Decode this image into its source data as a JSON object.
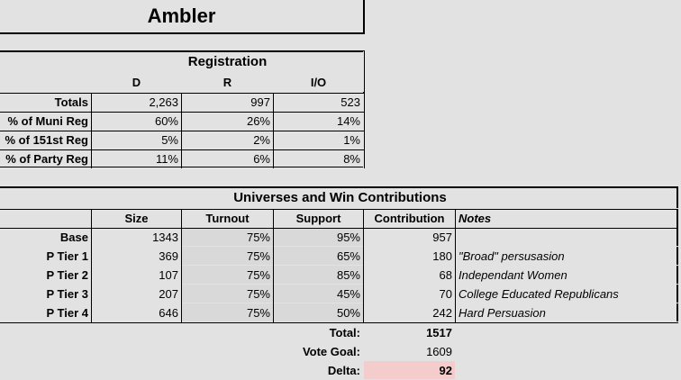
{
  "title": "Ambler",
  "registration": {
    "heading": "Registration",
    "columns": [
      "D",
      "R",
      "I/O"
    ],
    "rows": [
      {
        "label": "Totals",
        "values": [
          "2,263",
          "997",
          "523"
        ]
      },
      {
        "label": "% of Muni Reg",
        "values": [
          "60%",
          "26%",
          "14%"
        ]
      },
      {
        "label": "% of 151st Reg",
        "values": [
          "5%",
          "2%",
          "1%"
        ]
      },
      {
        "label": "% of Party Reg",
        "values": [
          "11%",
          "6%",
          "8%"
        ]
      }
    ]
  },
  "universes": {
    "heading": "Universes and Win Contributions",
    "columns": [
      "Size",
      "Turnout",
      "Support",
      "Contribution",
      "Notes"
    ],
    "rows": [
      {
        "label": "Base",
        "size": "1343",
        "turnout": "75%",
        "support": "95%",
        "contribution": "957",
        "note": ""
      },
      {
        "label": "P Tier 1",
        "size": "369",
        "turnout": "75%",
        "support": "65%",
        "contribution": "180",
        "note": "\"Broad\" persusasion"
      },
      {
        "label": "P Tier 2",
        "size": "107",
        "turnout": "75%",
        "support": "85%",
        "contribution": "68",
        "note": "Independant Women"
      },
      {
        "label": "P Tier 3",
        "size": "207",
        "turnout": "75%",
        "support": "45%",
        "contribution": "70",
        "note": "College Educated Republicans"
      },
      {
        "label": "P Tier 4",
        "size": "646",
        "turnout": "75%",
        "support": "50%",
        "contribution": "242",
        "note": "Hard Persuasion"
      }
    ]
  },
  "summary": [
    {
      "label": "Total:",
      "value": "1517"
    },
    {
      "label": "Vote Goal:",
      "value": "1609"
    },
    {
      "label": "Delta:",
      "value": "92"
    }
  ],
  "colors": {
    "shaded": "#d9d9d9",
    "delta_highlight": "#f4cccc",
    "gridline": "#e2e2e2"
  }
}
